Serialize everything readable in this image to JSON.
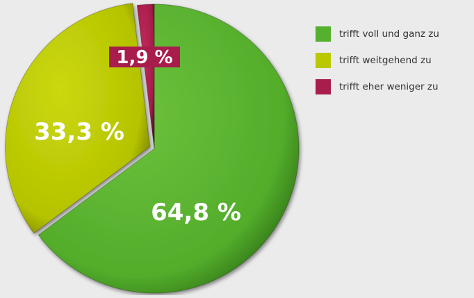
{
  "chart_data": {
    "type": "pie",
    "title": "",
    "legend_position": "top-right",
    "slices": [
      {
        "name": "trifft voll und ganz zu",
        "value": 64.8,
        "label": "64,8 %",
        "color": "#55b02d"
      },
      {
        "name": "trifft weitgehend zu",
        "value": 33.3,
        "label": "33,3 %",
        "color": "#b9c800"
      },
      {
        "name": "trifft eher weniger zu",
        "value": 1.9,
        "label": "1,9 %",
        "color": "#a81d4c"
      }
    ]
  }
}
